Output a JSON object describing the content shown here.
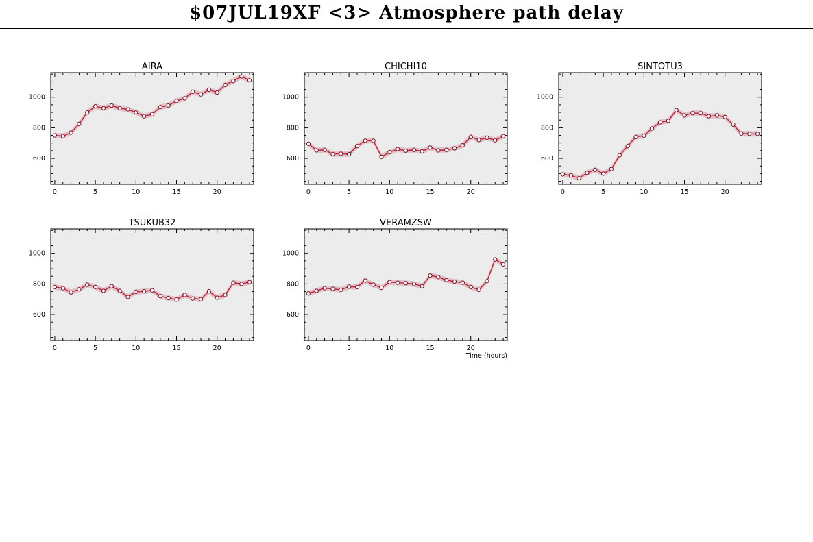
{
  "page": {
    "title": "$07JUL19XF <3>  Atmosphere path delay"
  },
  "chart_data": [
    {
      "type": "line",
      "title": "AIRA",
      "xlim": [
        -0.5,
        24.5
      ],
      "ylim": [
        430,
        1160
      ],
      "x_ticks": [
        0,
        5,
        10,
        15,
        20
      ],
      "y_ticks": [
        600,
        800,
        1000
      ],
      "series": [
        {
          "values": [
            [
              0,
              750
            ],
            [
              1,
              745
            ],
            [
              2,
              768
            ],
            [
              3,
              825
            ],
            [
              4,
              900
            ],
            [
              5,
              940
            ],
            [
              6,
              928
            ],
            [
              7,
              945
            ],
            [
              8,
              928
            ],
            [
              9,
              920
            ],
            [
              10,
              900
            ],
            [
              11,
              875
            ],
            [
              12,
              888
            ],
            [
              13,
              935
            ],
            [
              14,
              945
            ],
            [
              15,
              975
            ],
            [
              16,
              992
            ],
            [
              17,
              1035
            ],
            [
              18,
              1018
            ],
            [
              19,
              1048
            ],
            [
              20,
              1030
            ],
            [
              21,
              1080
            ],
            [
              22,
              1105
            ],
            [
              23,
              1135
            ],
            [
              24,
              1110
            ]
          ]
        }
      ]
    },
    {
      "type": "line",
      "title": "CHICHI10",
      "xlim": [
        -0.5,
        24.5
      ],
      "ylim": [
        430,
        1160
      ],
      "x_ticks": [
        0,
        5,
        10,
        15,
        20
      ],
      "y_ticks": [
        600,
        800,
        1000
      ],
      "series": [
        {
          "values": [
            [
              0,
              695
            ],
            [
              1,
              652
            ],
            [
              2,
              655
            ],
            [
              3,
              628
            ],
            [
              4,
              630
            ],
            [
              5,
              627
            ],
            [
              6,
              680
            ],
            [
              7,
              715
            ],
            [
              8,
              715
            ],
            [
              9,
              610
            ],
            [
              10,
              640
            ],
            [
              11,
              660
            ],
            [
              12,
              650
            ],
            [
              13,
              655
            ],
            [
              14,
              645
            ],
            [
              15,
              670
            ],
            [
              16,
              652
            ],
            [
              17,
              655
            ],
            [
              18,
              665
            ],
            [
              19,
              685
            ],
            [
              20,
              740
            ],
            [
              21,
              720
            ],
            [
              22,
              735
            ],
            [
              23,
              718
            ],
            [
              24,
              745
            ]
          ]
        }
      ]
    },
    {
      "type": "line",
      "title": "SINTOTU3",
      "xlim": [
        -0.5,
        24.5
      ],
      "ylim": [
        430,
        1160
      ],
      "x_ticks": [
        0,
        5,
        10,
        15,
        20
      ],
      "y_ticks": [
        600,
        800,
        1000
      ],
      "series": [
        {
          "values": [
            [
              0,
              495
            ],
            [
              1,
              488
            ],
            [
              2,
              470
            ],
            [
              3,
              505
            ],
            [
              4,
              525
            ],
            [
              5,
              500
            ],
            [
              6,
              530
            ],
            [
              7,
              620
            ],
            [
              8,
              680
            ],
            [
              9,
              740
            ],
            [
              10,
              748
            ],
            [
              11,
              795
            ],
            [
              12,
              835
            ],
            [
              13,
              845
            ],
            [
              14,
              915
            ],
            [
              15,
              880
            ],
            [
              16,
              895
            ],
            [
              17,
              895
            ],
            [
              18,
              875
            ],
            [
              19,
              880
            ],
            [
              20,
              870
            ],
            [
              21,
              820
            ],
            [
              22,
              762
            ],
            [
              23,
              760
            ],
            [
              24,
              760
            ]
          ]
        }
      ]
    },
    {
      "type": "line",
      "title": "TSUKUB32",
      "xlim": [
        -0.5,
        24.5
      ],
      "ylim": [
        430,
        1160
      ],
      "x_ticks": [
        0,
        5,
        10,
        15,
        20
      ],
      "y_ticks": [
        600,
        800,
        1000
      ],
      "series": [
        {
          "values": [
            [
              0,
              780
            ],
            [
              1,
              772
            ],
            [
              2,
              745
            ],
            [
              3,
              765
            ],
            [
              4,
              795
            ],
            [
              5,
              780
            ],
            [
              6,
              755
            ],
            [
              7,
              785
            ],
            [
              8,
              755
            ],
            [
              9,
              715
            ],
            [
              10,
              748
            ],
            [
              11,
              752
            ],
            [
              12,
              758
            ],
            [
              13,
              720
            ],
            [
              14,
              708
            ],
            [
              15,
              698
            ],
            [
              16,
              728
            ],
            [
              17,
              705
            ],
            [
              18,
              700
            ],
            [
              19,
              752
            ],
            [
              20,
              710
            ],
            [
              21,
              728
            ],
            [
              22,
              808
            ],
            [
              23,
              800
            ],
            [
              24,
              812
            ]
          ]
        }
      ]
    },
    {
      "type": "line",
      "title": "VERAMZSW",
      "xlabel": "Time (hours)",
      "xlim": [
        -0.5,
        24.5
      ],
      "ylim": [
        430,
        1160
      ],
      "x_ticks": [
        0,
        5,
        10,
        15,
        20
      ],
      "y_ticks": [
        600,
        800,
        1000
      ],
      "series": [
        {
          "values": [
            [
              0,
              738
            ],
            [
              1,
              755
            ],
            [
              2,
              772
            ],
            [
              3,
              768
            ],
            [
              4,
              762
            ],
            [
              5,
              782
            ],
            [
              6,
              780
            ],
            [
              7,
              822
            ],
            [
              8,
              795
            ],
            [
              9,
              775
            ],
            [
              10,
              812
            ],
            [
              11,
              808
            ],
            [
              12,
              805
            ],
            [
              13,
              800
            ],
            [
              14,
              785
            ],
            [
              15,
              855
            ],
            [
              16,
              845
            ],
            [
              17,
              825
            ],
            [
              18,
              815
            ],
            [
              19,
              808
            ],
            [
              20,
              780
            ],
            [
              21,
              762
            ],
            [
              22,
              818
            ],
            [
              23,
              960
            ],
            [
              24,
              928
            ]
          ]
        }
      ]
    }
  ],
  "colors": {
    "plot_bg": "#ececec",
    "line": "#cc1a33",
    "band": "#d9b4bc",
    "marker_fill": "#ffffff",
    "marker_edge": "#7a1020"
  }
}
